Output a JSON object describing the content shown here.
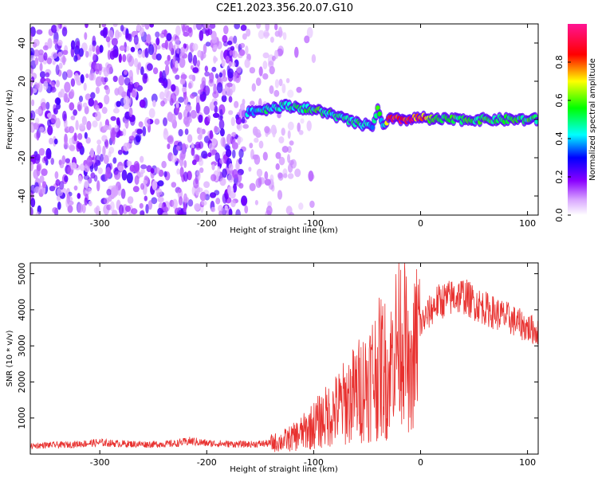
{
  "title": "C2E1.2023.356.20.07.G10",
  "chart_data": [
    {
      "type": "heatmap",
      "xlabel": "Height of straight line (km)",
      "ylabel": "Frequency (Hz)",
      "xlim": [
        -365,
        110
      ],
      "ylim": [
        -50,
        50
      ],
      "x_ticks": [
        -300,
        -200,
        -100,
        0,
        100
      ],
      "y_ticks": [
        -40,
        -20,
        0,
        20,
        40
      ],
      "colorbar": {
        "label": "Normalized spectral amplitude",
        "range": [
          0,
          1
        ],
        "ticks": [
          0.0,
          0.2,
          0.4,
          0.6,
          0.8
        ],
        "colors": [
          "#ffffff",
          "#8a00ff",
          "#0000ff",
          "#00ffff",
          "#00ff00",
          "#ffff00",
          "#ff0000",
          "#ff1493"
        ]
      },
      "regions": [
        {
          "x_range": [
            -365,
            -165
          ],
          "freq_range": [
            -50,
            50
          ],
          "amplitude": 0.15
        },
        {
          "x_range": [
            -165,
            -120
          ],
          "freq_range": [
            -50,
            50
          ],
          "amplitude": 0.05
        },
        {
          "x_range": [
            -120,
            -100
          ],
          "freq_range": [
            -50,
            50
          ],
          "amplitude": 0.02
        }
      ],
      "signal_track": {
        "x": [
          -162,
          -150,
          -140,
          -130,
          -120,
          -110,
          -100,
          -90,
          -80,
          -70,
          -60,
          -50,
          -45,
          -40,
          -35,
          -30,
          -20,
          -10,
          0,
          10,
          20,
          40,
          60,
          80,
          100,
          110
        ],
        "freq": [
          4,
          5,
          6,
          7,
          7,
          6,
          5,
          4,
          2,
          0,
          -2,
          -3,
          -3,
          5,
          -4,
          0,
          0,
          0,
          1,
          0,
          0,
          0,
          0,
          0,
          0,
          0
        ],
        "amplitude": [
          0.4,
          0.45,
          0.5,
          0.5,
          0.5,
          0.5,
          0.55,
          0.55,
          0.5,
          0.5,
          0.55,
          0.5,
          0.4,
          0.6,
          0.4,
          0.9,
          0.9,
          0.85,
          0.9,
          0.6,
          0.6,
          0.55,
          0.55,
          0.55,
          0.55,
          0.55
        ]
      }
    },
    {
      "type": "line",
      "xlabel": "Height of straight line (km)",
      "ylabel": "SNR (10 * v/v)",
      "xlim": [
        -365,
        110
      ],
      "ylim": [
        0,
        5300
      ],
      "x_ticks": [
        -300,
        -200,
        -100,
        0,
        100
      ],
      "y_ticks": [
        1000,
        2000,
        3000,
        4000,
        5000
      ],
      "color": "#e8312f",
      "series": [
        {
          "x": [
            -365,
            -350,
            -330,
            -310,
            -300,
            -290,
            -270,
            -250,
            -230,
            -215,
            -200,
            -180,
            -160,
            -140,
            -130,
            -120,
            -110,
            -100,
            -90,
            -80,
            -70,
            -60,
            -50,
            -45,
            -40,
            -35,
            -30,
            -25,
            -20,
            -15,
            -10,
            -5,
            0,
            5,
            10,
            15,
            20,
            25,
            30,
            40,
            50,
            60,
            70,
            80,
            90,
            100,
            110
          ],
          "values": [
            220,
            250,
            260,
            300,
            320,
            300,
            280,
            270,
            290,
            360,
            300,
            280,
            270,
            300,
            350,
            450,
            600,
            800,
            1000,
            1200,
            1450,
            1700,
            2000,
            2200,
            2300,
            2500,
            2100,
            3000,
            3200,
            3400,
            1800,
            3000,
            3600,
            3800,
            4000,
            4200,
            4250,
            4300,
            4350,
            4400,
            4200,
            4050,
            3900,
            3800,
            3650,
            3500,
            3400
          ]
        }
      ]
    }
  ]
}
